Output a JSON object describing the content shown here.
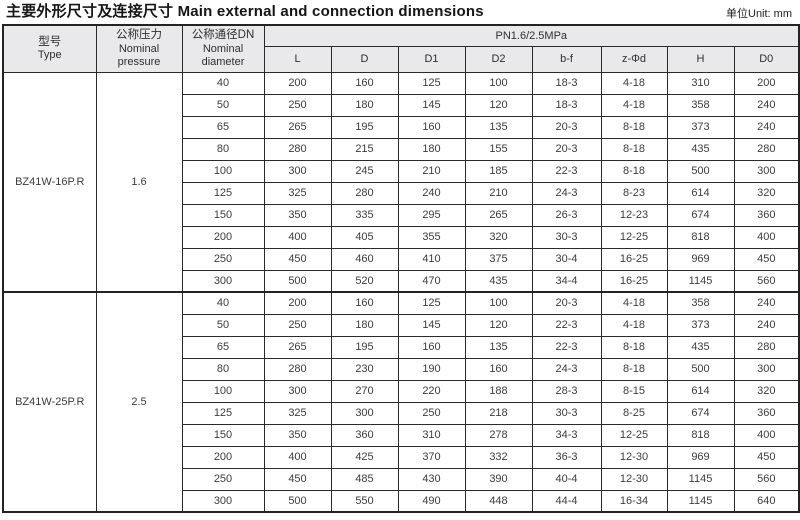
{
  "title": {
    "zh": "主要外形尺寸及连接尺寸",
    "en": "Main external and connection dimensions",
    "full": "主要外形尺寸及连接尺寸 Main external and connection dimensions"
  },
  "unit_label": "单位Unit: mm",
  "colors": {
    "header_bg": "#e9e9eb",
    "border": "#232323",
    "text": "#3c3c3c",
    "title_text": "#151515"
  },
  "table": {
    "header": {
      "type_zh": "型号",
      "type_en": "Type",
      "pressure_zh": "公称压力",
      "pressure_en1": "Nominal",
      "pressure_en2": "pressure",
      "diameter_zh": "公称通径DN",
      "diameter_en1": "Nominal",
      "diameter_en2": "diameter",
      "pn_band": "PN1.6/2.5MPa",
      "dim_columns": [
        "L",
        "D",
        "D1",
        "D2",
        "b-f",
        "z-Φd",
        "H",
        "D0"
      ]
    },
    "groups": [
      {
        "type": "BZ41W-16P.R",
        "pressure": "1.6",
        "rows": [
          [
            "40",
            "200",
            "160",
            "125",
            "100",
            "18-3",
            "4-18",
            "310",
            "200"
          ],
          [
            "50",
            "250",
            "180",
            "145",
            "120",
            "18-3",
            "4-18",
            "358",
            "240"
          ],
          [
            "65",
            "265",
            "195",
            "160",
            "135",
            "20-3",
            "8-18",
            "373",
            "240"
          ],
          [
            "80",
            "280",
            "215",
            "180",
            "155",
            "20-3",
            "8-18",
            "435",
            "280"
          ],
          [
            "100",
            "300",
            "245",
            "210",
            "185",
            "22-3",
            "8-18",
            "500",
            "300"
          ],
          [
            "125",
            "325",
            "280",
            "240",
            "210",
            "24-3",
            "8-23",
            "614",
            "320"
          ],
          [
            "150",
            "350",
            "335",
            "295",
            "265",
            "26-3",
            "12-23",
            "674",
            "360"
          ],
          [
            "200",
            "400",
            "405",
            "355",
            "320",
            "30-3",
            "12-25",
            "818",
            "400"
          ],
          [
            "250",
            "450",
            "460",
            "410",
            "375",
            "30-4",
            "16-25",
            "969",
            "450"
          ],
          [
            "300",
            "500",
            "520",
            "470",
            "435",
            "34-4",
            "16-25",
            "1145",
            "560"
          ]
        ]
      },
      {
        "type": "BZ41W-25P.R",
        "pressure": "2.5",
        "rows": [
          [
            "40",
            "200",
            "160",
            "125",
            "100",
            "20-3",
            "4-18",
            "358",
            "240"
          ],
          [
            "50",
            "250",
            "180",
            "145",
            "120",
            "22-3",
            "4-18",
            "373",
            "240"
          ],
          [
            "65",
            "265",
            "195",
            "160",
            "135",
            "22-3",
            "8-18",
            "435",
            "280"
          ],
          [
            "80",
            "280",
            "230",
            "190",
            "160",
            "24-3",
            "8-18",
            "500",
            "300"
          ],
          [
            "100",
            "300",
            "270",
            "220",
            "188",
            "28-3",
            "8-15",
            "614",
            "320"
          ],
          [
            "125",
            "325",
            "300",
            "250",
            "218",
            "30-3",
            "8-25",
            "674",
            "360"
          ],
          [
            "150",
            "350",
            "360",
            "310",
            "278",
            "34-3",
            "12-25",
            "818",
            "400"
          ],
          [
            "200",
            "400",
            "425",
            "370",
            "332",
            "36-3",
            "12-30",
            "969",
            "450"
          ],
          [
            "250",
            "450",
            "485",
            "430",
            "390",
            "40-4",
            "12-30",
            "1145",
            "560"
          ],
          [
            "300",
            "500",
            "550",
            "490",
            "448",
            "44-4",
            "16-34",
            "1145",
            "640"
          ]
        ]
      }
    ]
  }
}
